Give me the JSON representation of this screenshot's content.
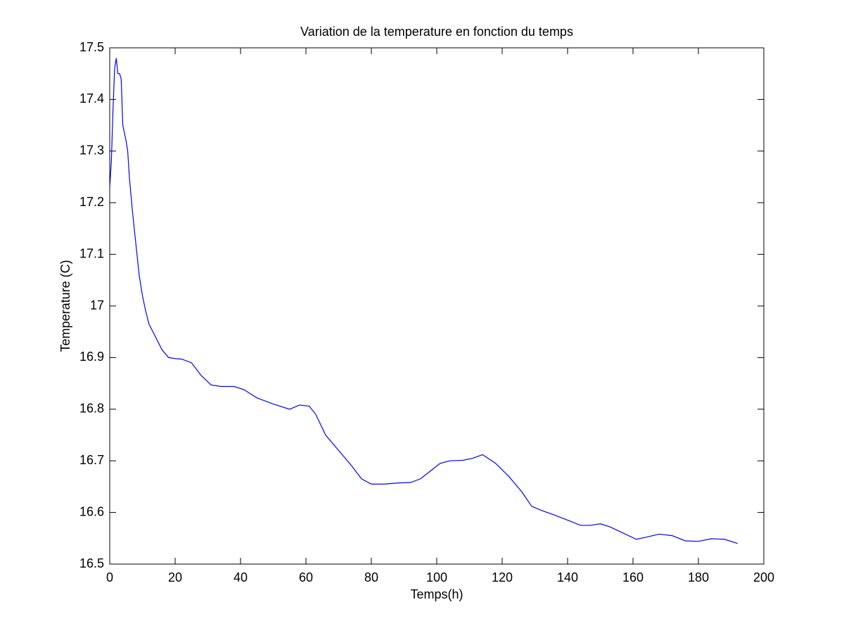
{
  "chart_data": {
    "type": "line",
    "title": "Variation de la temperature en fonction du temps",
    "x_label": "Temps(h)",
    "y_label": "Temperature (C)",
    "x": [
      0,
      0.5,
      1,
      1.5,
      2,
      2.5,
      3,
      3.5,
      4,
      5,
      5.5,
      6,
      7,
      8,
      9,
      10,
      11,
      12,
      14,
      16,
      18,
      20,
      22,
      25,
      28,
      31,
      34,
      38,
      41,
      45,
      50,
      55,
      58,
      61,
      63,
      66,
      70,
      74,
      77,
      80,
      84,
      88,
      92,
      95,
      98,
      101,
      104,
      108,
      111,
      114,
      118,
      122,
      126,
      129,
      132,
      136,
      140,
      144,
      147,
      150,
      153,
      157,
      161,
      164,
      168,
      172,
      176,
      180,
      184,
      188,
      192
    ],
    "series": [
      {
        "name": "Temperature",
        "color": "#0000ff",
        "values": [
          17.23,
          17.28,
          17.38,
          17.46,
          17.48,
          17.45,
          17.45,
          17.44,
          17.35,
          17.32,
          17.3,
          17.25,
          17.18,
          17.12,
          17.06,
          17.02,
          16.99,
          16.965,
          16.94,
          16.915,
          16.9,
          16.898,
          16.897,
          16.89,
          16.865,
          16.847,
          16.844,
          16.844,
          16.838,
          16.822,
          16.81,
          16.8,
          16.808,
          16.806,
          16.79,
          16.75,
          16.72,
          16.69,
          16.665,
          16.655,
          16.655,
          16.657,
          16.658,
          16.665,
          16.68,
          16.695,
          16.7,
          16.701,
          16.705,
          16.712,
          16.695,
          16.67,
          16.64,
          16.612,
          16.604,
          16.595,
          16.585,
          16.575,
          16.575,
          16.578,
          16.572,
          16.56,
          16.548,
          16.552,
          16.558,
          16.555,
          16.545,
          16.544,
          16.549,
          16.548,
          16.54
        ]
      }
    ],
    "xlim": [
      0,
      200
    ],
    "xticks": [
      0,
      20,
      40,
      60,
      80,
      100,
      120,
      140,
      160,
      180,
      200
    ],
    "ylim": [
      16.5,
      17.5
    ],
    "yticks": [
      16.5,
      16.6,
      16.7,
      16.8,
      16.9,
      17,
      17.1,
      17.2,
      17.3,
      17.4,
      17.5
    ]
  }
}
